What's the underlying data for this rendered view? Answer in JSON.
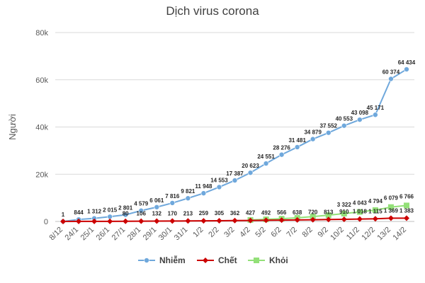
{
  "chart_data": {
    "type": "line",
    "title": "Dịch virus corona",
    "xlabel": "",
    "ylabel": "Người",
    "ylim": [
      0,
      80000
    ],
    "yticks": [
      0,
      20000,
      40000,
      60000,
      80000
    ],
    "ytick_labels": [
      "0",
      "20k",
      "40k",
      "60k",
      "80k"
    ],
    "grid": true,
    "legend_position": "bottom",
    "categories": [
      "8/12",
      "24/1",
      "25/1",
      "26/1",
      "27/1",
      "28/1",
      "29/1",
      "30/1",
      "31/1",
      "1/2",
      "2/2",
      "3/2",
      "4/2",
      "5/2",
      "6/2",
      "7/2",
      "8/2",
      "9/2",
      "10/2",
      "11/2",
      "12/2",
      "13/2",
      "14/2"
    ],
    "series": [
      {
        "name": "Nhiễm",
        "color": "#6fa8dc",
        "marker": "circle",
        "values": [
          1,
          844,
          1312,
          2015,
          2801,
          4579,
          6061,
          7816,
          9821,
          11948,
          14553,
          17387,
          20623,
          24551,
          28276,
          31481,
          34879,
          37552,
          40553,
          43098,
          45171,
          60374,
          64434
        ],
        "labels": [
          "1",
          "844",
          "1 312",
          "2 015",
          "2 801",
          "4 579",
          "6 061",
          "7 816",
          "9 821",
          "11 948",
          "14 553",
          "17 387",
          "20 623",
          "24 551",
          "28 276",
          "31 481",
          "34 879",
          "37 552",
          "40 553",
          "43 098",
          "45 171",
          "60 374",
          "64 434"
        ]
      },
      {
        "name": "Chết",
        "color": "#cc0000",
        "marker": "diamond",
        "values": [
          0,
          25,
          41,
          56,
          80,
          106,
          132,
          170,
          213,
          259,
          305,
          362,
          427,
          492,
          566,
          638,
          720,
          813,
          910,
          1018,
          1115,
          1369,
          1383
        ],
        "labels": [
          "",
          "",
          "",
          "",
          "80",
          "106",
          "132",
          "170",
          "213",
          "259",
          "305",
          "362",
          "427",
          "492",
          "566",
          "638",
          "720",
          "813",
          "910",
          "1 018",
          "1 115",
          "1 369",
          "1 383"
        ]
      },
      {
        "name": "Khỏi",
        "color": "#93e078",
        "marker": "square",
        "start_index": 12,
        "values": [
          null,
          null,
          null,
          null,
          null,
          null,
          null,
          null,
          null,
          null,
          null,
          null,
          632,
          892,
          1153,
          1540,
          2050,
          2649,
          3322,
          4043,
          4794,
          6079,
          6766
        ],
        "labels": [
          "",
          "",
          "",
          "",
          "",
          "",
          "",
          "",
          "",
          "",
          "",
          "",
          "",
          "",
          "",
          "",
          "",
          "",
          "3 322",
          "4 043",
          "4 794",
          "6 079",
          "6 766"
        ]
      }
    ]
  }
}
